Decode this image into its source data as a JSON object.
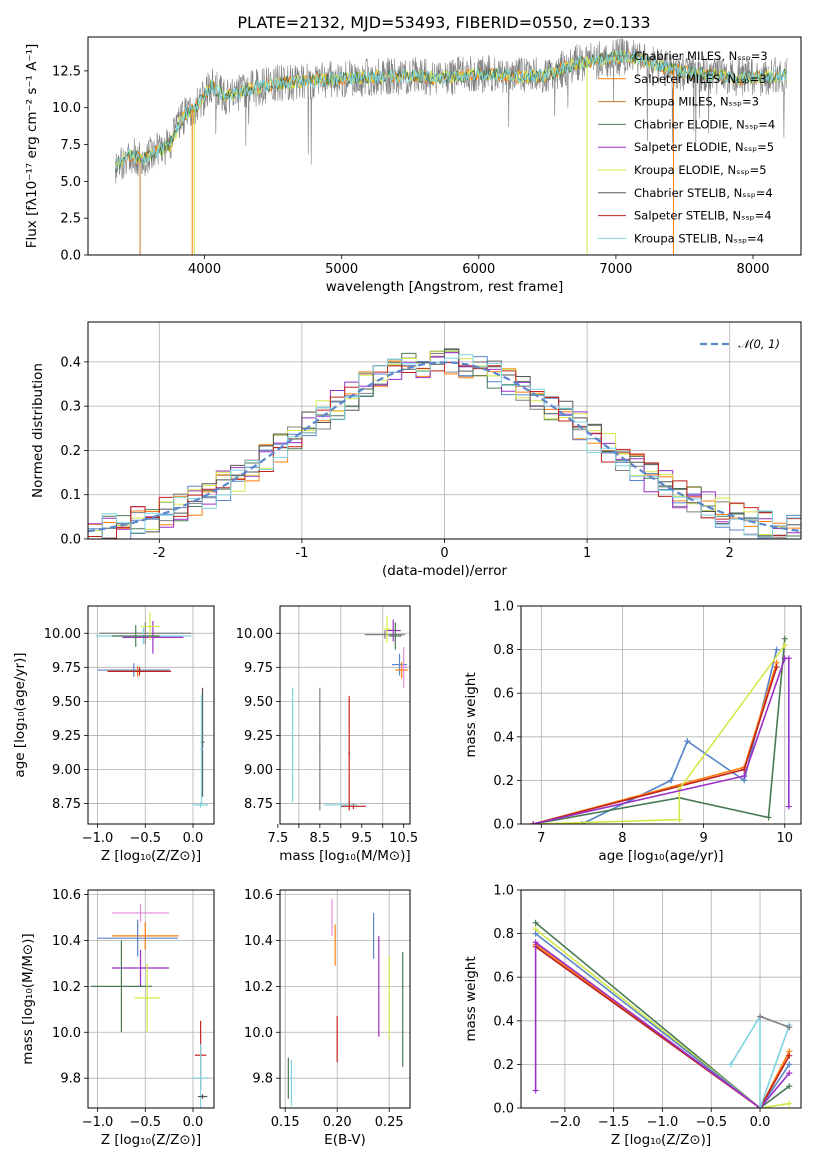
{
  "title": "PLATE=2132, MJD=53493, FIBERID=0550, z=0.133",
  "colors": {
    "grey": "#808080",
    "orange": "#ff7f0e",
    "steelblue": "#5b86c9",
    "darkgreen": "#4a7a55",
    "purple": "#9b30c8",
    "yellow": "#d4e84a",
    "darkgrey": "#555555",
    "red": "#c0231f",
    "cyan": "#7fd3e0",
    "pink": "#e88ad8",
    "gridcolor": "#b0b0b0"
  },
  "chart_data": [
    {
      "id": "spectrum",
      "type": "line",
      "title": "PLATE=2132, MJD=53493, FIBERID=0550, z=0.133",
      "xlabel": "wavelength [Angstrom, rest frame]",
      "ylabel": "Flux [fλ10⁻¹⁷ erg cm⁻² s⁻¹ A⁻¹]",
      "xlim": [
        3150,
        8350
      ],
      "ylim": [
        0,
        14.8
      ],
      "xticks": [
        4000,
        5000,
        6000,
        7000,
        8000
      ],
      "yticks": [
        0.0,
        2.5,
        5.0,
        7.5,
        10.0,
        12.5
      ],
      "ytick_labels": [
        "0.0",
        "2.5",
        "5.0",
        "7.5",
        "10.0",
        "12.5"
      ],
      "legend_position": "upper right",
      "grid": false,
      "envelope": {
        "x": [
          3350,
          3450,
          3550,
          3650,
          3750,
          3850,
          3950,
          4050,
          4150,
          4300,
          4500,
          4700,
          4900,
          5100,
          5300,
          5500,
          5700,
          5900,
          6100,
          6300,
          6500,
          6700,
          6900,
          7100,
          7300,
          7500,
          7700,
          7900,
          8100,
          8250
        ],
        "y": [
          6.0,
          6.8,
          6.5,
          7.0,
          7.5,
          9.5,
          10.2,
          11.5,
          10.8,
          11.2,
          11.6,
          11.8,
          11.9,
          12.0,
          12.1,
          12.2,
          12.0,
          12.2,
          12.3,
          12.1,
          12.2,
          13.0,
          13.3,
          13.5,
          12.9,
          12.4,
          12.2,
          12.0,
          12.1,
          12.2
        ]
      },
      "series": [
        {
          "name": "Chabrier MILES, Nₛₛₚ=3",
          "color": "#808080"
        },
        {
          "name": "Salpeter MILES, Nₛₛₚ=3",
          "color": "#ff7f0e"
        },
        {
          "name": "Kroupa MILES, Nₛₛₚ=3",
          "color": "#c77a2a"
        },
        {
          "name": "Chabrier ELODIE, Nₛₛₚ=4",
          "color": "#4a7a55"
        },
        {
          "name": "Salpeter ELODIE, Nₛₛₚ=5",
          "color": "#9b30c8"
        },
        {
          "name": "Kroupa ELODIE, Nₛₛₚ=5",
          "color": "#d4e84a"
        },
        {
          "name": "Chabrier STELIB, Nₛₛₚ=4",
          "color": "#555555"
        },
        {
          "name": "Salpeter STELIB, Nₛₛₚ=4",
          "color": "#c0231f"
        },
        {
          "name": "Kroupa STELIB, Nₛₛₚ=4",
          "color": "#7fd3e0"
        }
      ],
      "vertical_drops": [
        {
          "x": 3530,
          "color": "#c77a2a"
        },
        {
          "x": 3910,
          "color": "#ff7f0e"
        },
        {
          "x": 3925,
          "color": "#d4e84a"
        },
        {
          "x": 6790,
          "color": "#d4e84a"
        },
        {
          "x": 7420,
          "color": "#ff7f0e"
        }
      ]
    },
    {
      "id": "residuals",
      "type": "histogram",
      "xlabel": "(data-model)/error",
      "ylabel": "Normed distribution",
      "xlim": [
        -2.5,
        2.5
      ],
      "ylim": [
        0,
        0.49
      ],
      "xticks": [
        -2,
        -1,
        0,
        1,
        2
      ],
      "yticks": [
        0.0,
        0.1,
        0.2,
        0.3,
        0.4
      ],
      "ytick_labels": [
        "0.0",
        "0.1",
        "0.2",
        "0.3",
        "0.4"
      ],
      "grid": true,
      "legend_position": "upper right",
      "normal_curve_label": "𝒩(0, 1)",
      "bin_width": 0.1,
      "series_colors": [
        "#808080",
        "#ff7f0e",
        "#5b86c9",
        "#4a7a55",
        "#9b30c8",
        "#d4e84a",
        "#555555",
        "#c0231f",
        "#7fd3e0"
      ]
    },
    {
      "id": "age_vs_Z",
      "type": "scatter",
      "xlabel": "Z [log₁₀(Z/Z⊙)]",
      "ylabel": "age  [log₁₀(age/yr)]",
      "xlim": [
        -1.1,
        0.22
      ],
      "ylim": [
        8.6,
        10.2
      ],
      "xticks": [
        -1.0,
        -0.5,
        0.0
      ],
      "xtick_labels": [
        "−1.0",
        "−0.5",
        "0.0"
      ],
      "yticks": [
        8.75,
        9.0,
        9.25,
        9.5,
        9.75,
        10.0
      ],
      "ytick_labels": [
        "8.75",
        "9.00",
        "9.25",
        "9.50",
        "9.75",
        "10.00"
      ],
      "grid": true,
      "points": [
        {
          "x": -0.5,
          "y": 10.0,
          "xerr": 0.48,
          "yerr": 0.08,
          "color": "#808080"
        },
        {
          "x": -0.52,
          "y": 9.98,
          "xerr": 0.5,
          "yerr": 0.06,
          "color": "#7fd3e0"
        },
        {
          "x": -0.42,
          "y": 9.97,
          "xerr": 0.32,
          "yerr": 0.12,
          "color": "#9b30c8"
        },
        {
          "x": -0.45,
          "y": 10.05,
          "xerr": 0.1,
          "yerr": 0.1,
          "color": "#d4e84a"
        },
        {
          "x": -0.6,
          "y": 9.98,
          "xerr": 0.25,
          "yerr": 0.08,
          "color": "#4a7a55"
        },
        {
          "x": -0.62,
          "y": 9.73,
          "xerr": 0.38,
          "yerr": 0.05,
          "color": "#5b86c9"
        },
        {
          "x": -0.58,
          "y": 9.72,
          "xerr": 0.32,
          "yerr": 0.04,
          "color": "#ff7f0e"
        },
        {
          "x": -0.56,
          "y": 9.72,
          "xerr": 0.33,
          "yerr": 0.03,
          "color": "#c0231f"
        },
        {
          "x": 0.1,
          "y": 9.2,
          "xerr": 0.02,
          "yerr": 0.4,
          "color": "#555555"
        },
        {
          "x": 0.09,
          "y": 9.15,
          "xerr": 0.02,
          "yerr": 0.4,
          "color": "#7fd3e0"
        },
        {
          "x": 0.08,
          "y": 8.74,
          "xerr": 0.08,
          "yerr": 0.02,
          "color": "#7fd3e0"
        }
      ]
    },
    {
      "id": "age_vs_mass",
      "type": "scatter",
      "xlabel": "mass [log₁₀(M/M⊙)]",
      "xlim": [
        7.55,
        10.65
      ],
      "ylim": [
        8.6,
        10.2
      ],
      "xticks": [
        8,
        9,
        10
      ],
      "xticks_labeled": [
        7.5,
        8.5,
        9.5,
        10.5
      ],
      "xtick_labels": [
        "7.5",
        "8.5",
        "9.5",
        "10.5"
      ],
      "yticks": [
        8.75,
        9.0,
        9.25,
        9.5,
        9.75,
        10.0
      ],
      "ytick_labels": [
        "8.75",
        "9.00",
        "9.25",
        "9.50",
        "9.75",
        "10.00"
      ],
      "grid": true,
      "points": [
        {
          "x": 10.05,
          "y": 9.99,
          "xerr": 0.48,
          "yerr": 0.03,
          "color": "#808080"
        },
        {
          "x": 10.25,
          "y": 10.02,
          "xerr": 0.18,
          "yerr": 0.08,
          "color": "#9b30c8"
        },
        {
          "x": 10.1,
          "y": 10.03,
          "xerr": 0.1,
          "yerr": 0.1,
          "color": "#d4e84a"
        },
        {
          "x": 10.3,
          "y": 9.98,
          "xerr": 0.15,
          "yerr": 0.1,
          "color": "#4a7a55"
        },
        {
          "x": 10.4,
          "y": 9.77,
          "xerr": 0.18,
          "yerr": 0.08,
          "color": "#5b86c9"
        },
        {
          "x": 10.45,
          "y": 9.73,
          "xerr": 0.15,
          "yerr": 0.06,
          "color": "#ff7f0e"
        },
        {
          "x": 10.5,
          "y": 9.75,
          "xerr": 0.08,
          "yerr": 0.15,
          "color": "#e88ad8"
        },
        {
          "x": 9.3,
          "y": 8.73,
          "xerr": 0.3,
          "yerr": 0.02,
          "color": "#c0231f"
        },
        {
          "x": 9.0,
          "y": 8.74,
          "xerr": 0.4,
          "yerr": 0.02,
          "color": "#7fd3e0"
        },
        {
          "x": 8.5,
          "y": 9.15,
          "xerr": 0.02,
          "yerr": 0.45,
          "color": "#808080"
        },
        {
          "x": 7.85,
          "y": 9.18,
          "xerr": 0.02,
          "yerr": 0.42,
          "color": "#7fd3e0"
        },
        {
          "x": 9.2,
          "y": 9.12,
          "xerr": 0.02,
          "yerr": 0.42,
          "color": "#c0231f"
        }
      ]
    },
    {
      "id": "massweight_vs_age",
      "type": "line",
      "xlabel": "age  [log₁₀(age/yr)]",
      "ylabel": "mass weight",
      "xlim": [
        6.75,
        10.2
      ],
      "ylim": [
        0,
        1.0
      ],
      "xticks": [
        7,
        8,
        9,
        10
      ],
      "yticks": [
        0.0,
        0.2,
        0.4,
        0.6,
        0.8,
        1.0
      ],
      "ytick_labels": [
        "0.0",
        "0.2",
        "0.4",
        "0.6",
        "0.8",
        "1.0"
      ],
      "grid": true,
      "series": [
        {
          "color": "#7fd3e0",
          "x": [
            7.5,
            8.6,
            8.8
          ],
          "y": [
            0.0,
            0.2,
            0.38
          ]
        },
        {
          "color": "#5b86c9",
          "x": [
            7.5,
            8.6,
            8.8,
            9.5,
            9.9
          ],
          "y": [
            0.0,
            0.2,
            0.38,
            0.2,
            0.8
          ]
        },
        {
          "color": "#ff7f0e",
          "x": [
            6.9,
            9.5,
            9.9
          ],
          "y": [
            0.0,
            0.26,
            0.74
          ]
        },
        {
          "color": "#c0231f",
          "x": [
            6.9,
            9.5,
            9.9
          ],
          "y": [
            0.0,
            0.25,
            0.72
          ]
        },
        {
          "color": "#4a7a55",
          "x": [
            6.9,
            8.7,
            9.8,
            10.0
          ],
          "y": [
            0.0,
            0.12,
            0.03,
            0.85
          ]
        },
        {
          "color": "#d4e84a",
          "x": [
            6.9,
            8.7,
            8.7,
            10.0
          ],
          "y": [
            0.0,
            0.02,
            0.16,
            0.82
          ]
        },
        {
          "color": "#9b30c8",
          "x": [
            6.9,
            9.5,
            10.0,
            10.05,
            10.05
          ],
          "y": [
            0.0,
            0.22,
            0.76,
            0.76,
            0.08
          ]
        }
      ]
    },
    {
      "id": "mass_vs_Z",
      "type": "scatter",
      "xlabel": "Z [log₁₀(Z/Z⊙)]",
      "ylabel": "mass [log₁₀(M/M⊙)]",
      "xlim": [
        -1.1,
        0.22
      ],
      "ylim": [
        9.67,
        10.62
      ],
      "xticks": [
        -1.0,
        -0.5,
        0.0
      ],
      "xtick_labels": [
        "−1.0",
        "−0.5",
        "0.0"
      ],
      "yticks": [
        9.8,
        10.0,
        10.2,
        10.4,
        10.6
      ],
      "ytick_labels": [
        "9.8",
        "10.0",
        "10.2",
        "10.4",
        "10.6"
      ],
      "grid": true,
      "points": [
        {
          "x": -0.55,
          "y": 10.52,
          "xerr": 0.3,
          "yerr": 0.04,
          "color": "#e88ad8"
        },
        {
          "x": -0.5,
          "y": 10.42,
          "xerr": 0.35,
          "yerr": 0.06,
          "color": "#ff7f0e"
        },
        {
          "x": -0.58,
          "y": 10.41,
          "xerr": 0.42,
          "yerr": 0.08,
          "color": "#5b86c9"
        },
        {
          "x": -0.55,
          "y": 10.28,
          "xerr": 0.3,
          "yerr": 0.08,
          "color": "#9b30c8"
        },
        {
          "x": -0.75,
          "y": 10.2,
          "xerr": 0.32,
          "yerr": 0.2,
          "color": "#4a7a55"
        },
        {
          "x": -0.48,
          "y": 10.15,
          "xerr": 0.13,
          "yerr": 0.15,
          "color": "#d4e84a"
        },
        {
          "x": 0.08,
          "y": 9.9,
          "xerr": 0.06,
          "yerr": 0.15,
          "color": "#c0231f"
        },
        {
          "x": 0.08,
          "y": 9.8,
          "xerr": 0.08,
          "yerr": 0.15,
          "color": "#7fd3e0"
        },
        {
          "x": 0.1,
          "y": 9.72,
          "xerr": 0.05,
          "yerr": 0.01,
          "color": "#555555"
        }
      ]
    },
    {
      "id": "mass_vs_EBV",
      "type": "scatter",
      "xlabel": "E(B-V)",
      "xlim": [
        0.145,
        0.27
      ],
      "ylim": [
        9.67,
        10.62
      ],
      "xticks": [
        0.15,
        0.2,
        0.25
      ],
      "xtick_labels": [
        "0.15",
        "0.20",
        "0.25"
      ],
      "yticks": [
        9.8,
        10.0,
        10.2,
        10.4,
        10.6
      ],
      "ytick_labels": [
        "9.8",
        "10.0",
        "10.2",
        "10.4",
        "10.6"
      ],
      "grid": true,
      "points": [
        {
          "x": 0.195,
          "y": 10.5,
          "yerr": 0.08,
          "color": "#e88ad8"
        },
        {
          "x": 0.198,
          "y": 10.38,
          "yerr": 0.09,
          "color": "#ff7f0e"
        },
        {
          "x": 0.235,
          "y": 10.42,
          "yerr": 0.1,
          "color": "#5b86c9"
        },
        {
          "x": 0.24,
          "y": 10.2,
          "yerr": 0.22,
          "color": "#9b30c8"
        },
        {
          "x": 0.25,
          "y": 10.15,
          "yerr": 0.18,
          "color": "#d4e84a"
        },
        {
          "x": 0.263,
          "y": 10.1,
          "yerr": 0.25,
          "color": "#4a7a55"
        },
        {
          "x": 0.2,
          "y": 9.97,
          "yerr": 0.1,
          "color": "#c0231f"
        },
        {
          "x": 0.153,
          "y": 9.8,
          "yerr": 0.09,
          "color": "#4a7a55"
        },
        {
          "x": 0.156,
          "y": 9.78,
          "yerr": 0.1,
          "color": "#7fd3e0"
        }
      ]
    },
    {
      "id": "massweight_vs_Z",
      "type": "line",
      "xlabel": "Z [log₁₀(Z/Z⊙)]",
      "ylabel": "mass weight",
      "xlim": [
        -2.45,
        0.42
      ],
      "ylim": [
        0,
        1.0
      ],
      "xticks": [
        -2.0,
        -1.5,
        -1.0,
        -0.5,
        0.0
      ],
      "xtick_labels": [
        "−2.0",
        "−1.5",
        "−1.0",
        "−0.5",
        "0.0"
      ],
      "yticks": [
        0.0,
        0.2,
        0.4,
        0.6,
        0.8,
        1.0
      ],
      "ytick_labels": [
        "0.0",
        "0.2",
        "0.4",
        "0.6",
        "0.8",
        "1.0"
      ],
      "grid": true,
      "series": [
        {
          "color": "#4a7a55",
          "x": [
            -2.3,
            0.0,
            0.3
          ],
          "y": [
            0.85,
            0.0,
            0.1
          ]
        },
        {
          "color": "#d4e84a",
          "x": [
            -2.3,
            0.0,
            0.3
          ],
          "y": [
            0.82,
            0.0,
            0.02
          ]
        },
        {
          "color": "#5b86c9",
          "x": [
            -2.3,
            0.0,
            0.3
          ],
          "y": [
            0.8,
            0.0,
            0.2
          ]
        },
        {
          "color": "#ff7f0e",
          "x": [
            -2.3,
            0.0,
            0.3
          ],
          "y": [
            0.75,
            0.0,
            0.26
          ]
        },
        {
          "color": "#c0231f",
          "x": [
            -2.3,
            0.0,
            0.3
          ],
          "y": [
            0.74,
            0.0,
            0.24
          ]
        },
        {
          "color": "#9b30c8",
          "x": [
            -2.3,
            -2.3,
            0.0,
            0.3
          ],
          "y": [
            0.08,
            0.76,
            0.0,
            0.16
          ]
        },
        {
          "color": "#7fd3e0",
          "x": [
            -0.3,
            0.0,
            0.0,
            0.3
          ],
          "y": [
            0.2,
            0.42,
            0.0,
            0.38
          ]
        },
        {
          "color": "#808080",
          "x": [
            0.0,
            0.3
          ],
          "y": [
            0.42,
            0.37
          ]
        }
      ]
    }
  ]
}
